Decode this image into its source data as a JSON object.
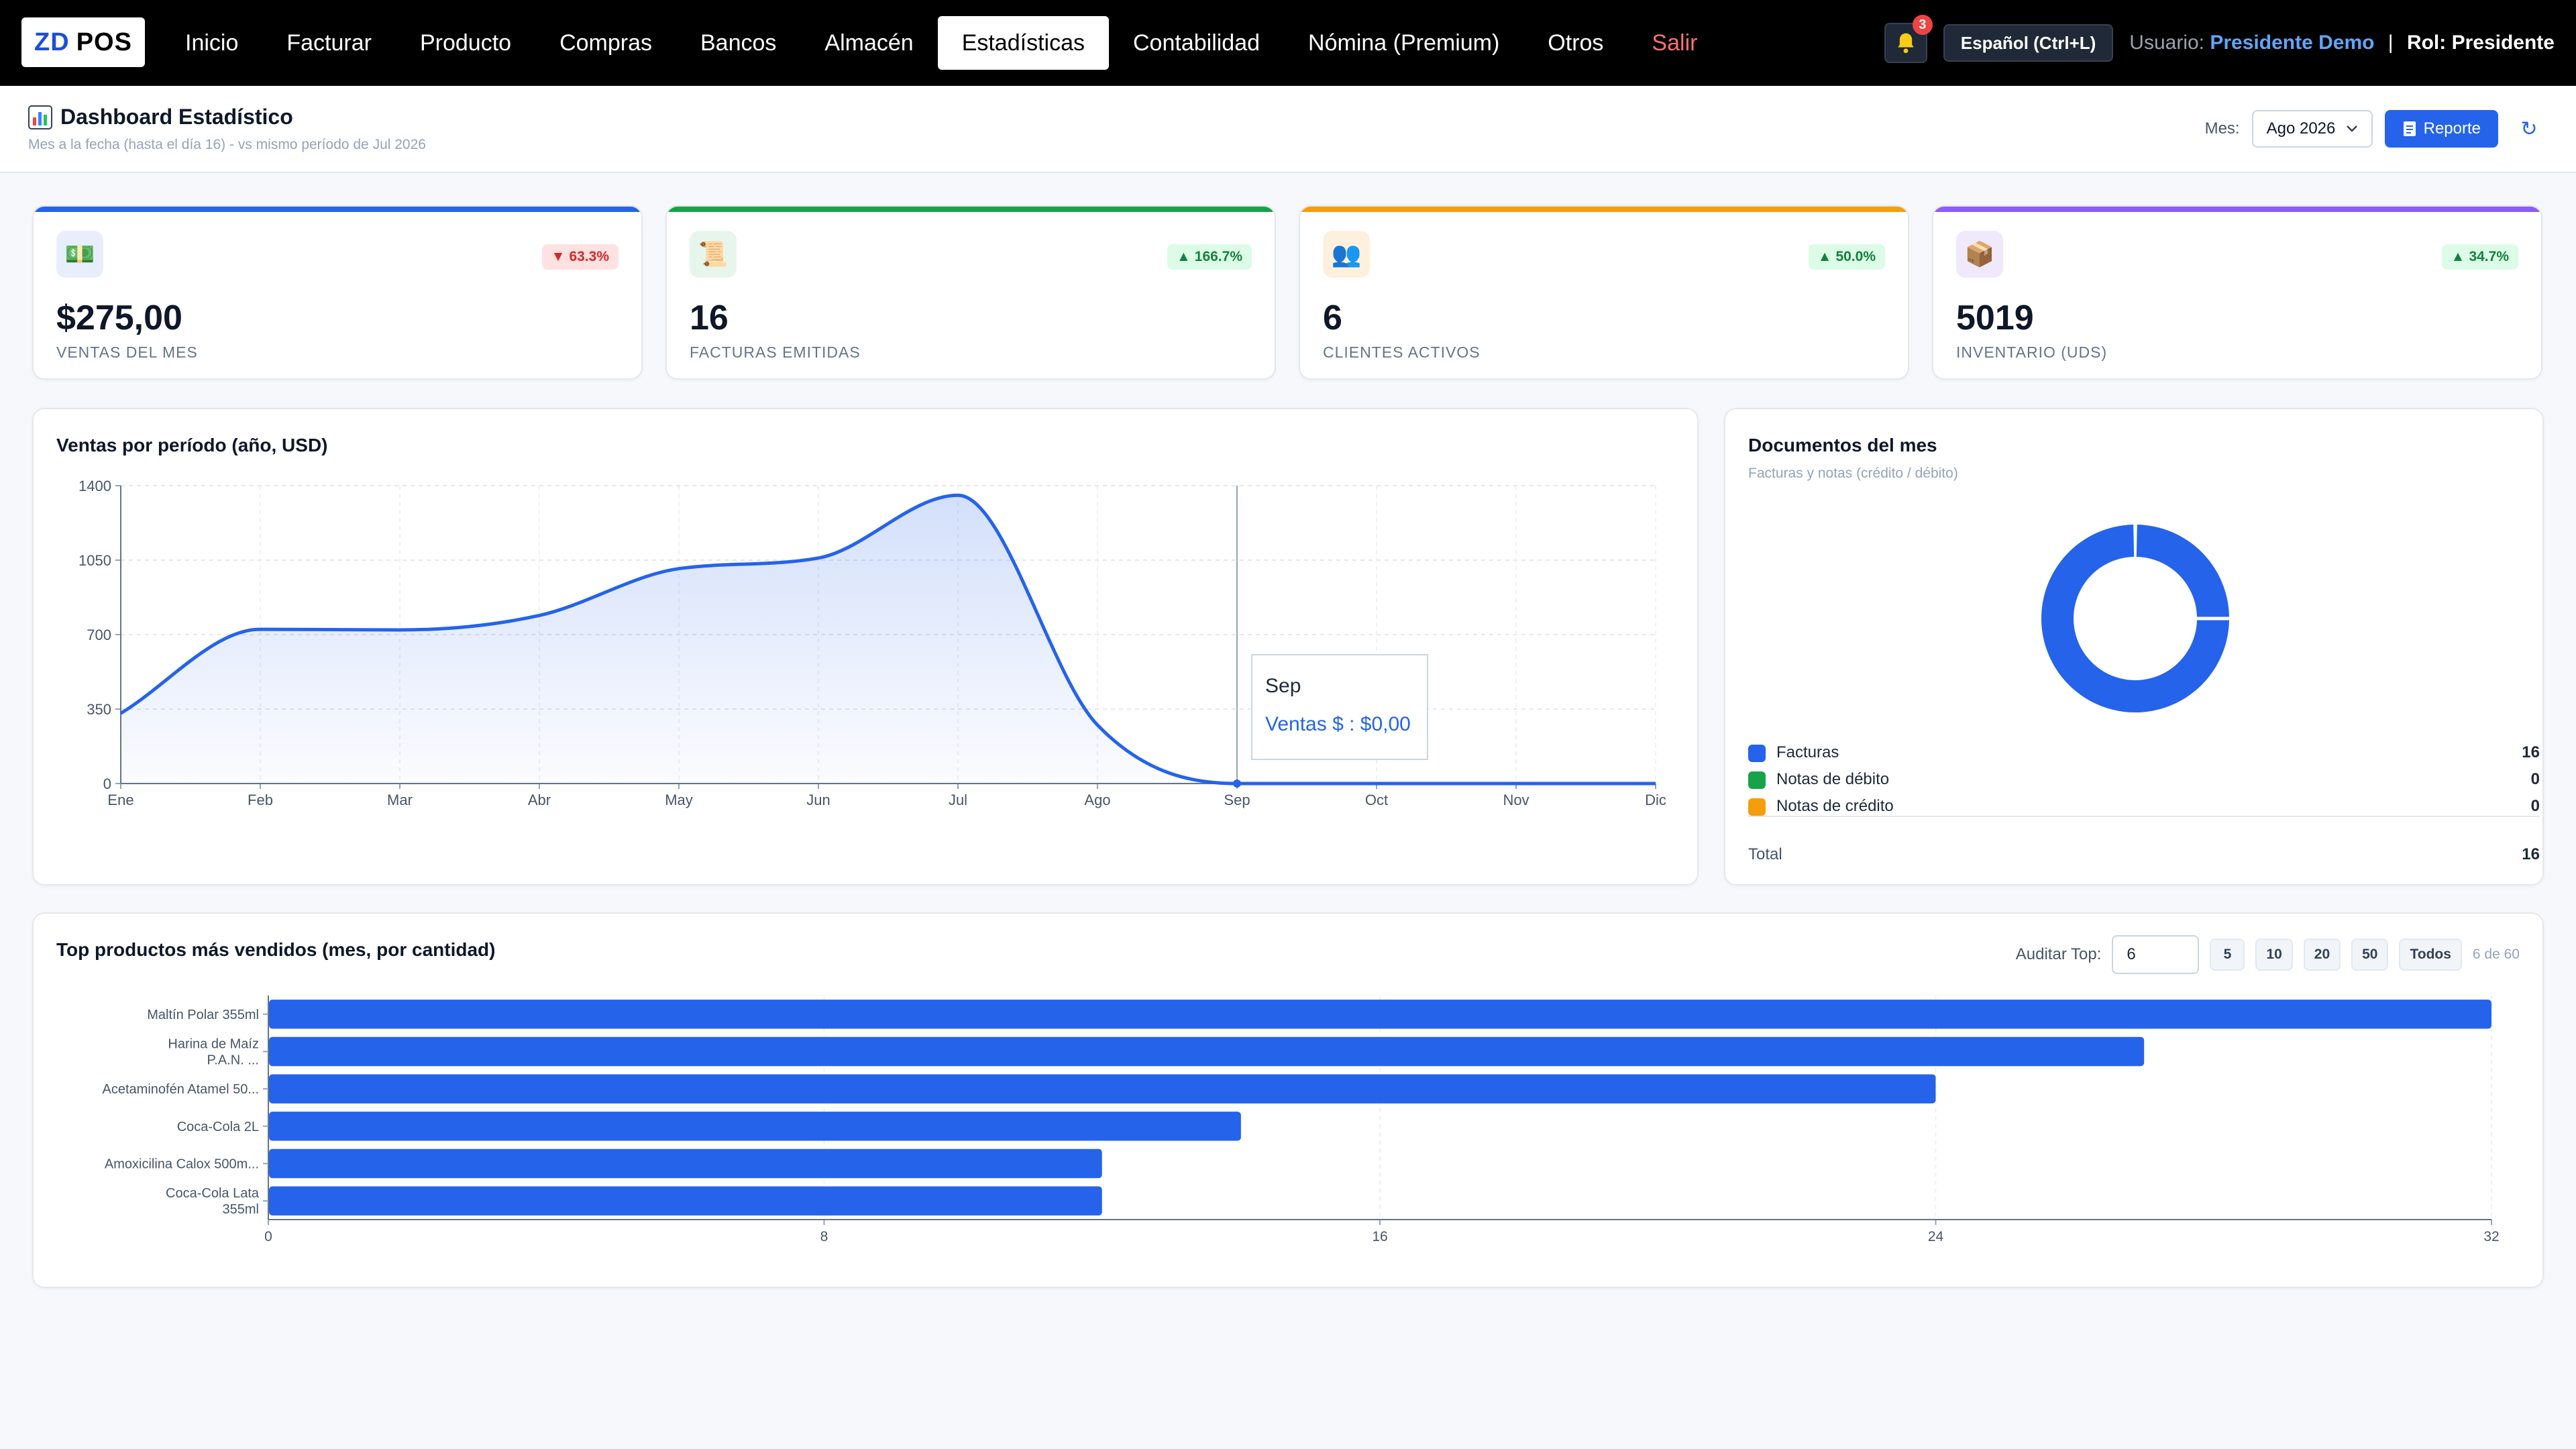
{
  "app": {
    "logo_zd": "ZD",
    "logo_pos": "POS"
  },
  "nav": {
    "items": [
      {
        "label": "Inicio"
      },
      {
        "label": "Facturar"
      },
      {
        "label": "Producto"
      },
      {
        "label": "Compras"
      },
      {
        "label": "Bancos"
      },
      {
        "label": "Almacén"
      },
      {
        "label": "Estadísticas",
        "active": true
      },
      {
        "label": "Contabilidad"
      },
      {
        "label": "Nómina (Premium)"
      },
      {
        "label": "Otros"
      },
      {
        "label": "Salir",
        "danger": true
      }
    ],
    "notifications_count": "3",
    "language_button": "Español (Ctrl+L)",
    "user_label": "Usuario:",
    "user_name": "Presidente Demo",
    "separator": "|",
    "role": "Rol: Presidente"
  },
  "header": {
    "title": "Dashboard Estadístico",
    "subtitle": "Mes a la fecha (hasta el día 16) - vs mismo período de Jul 2026",
    "month_label": "Mes:",
    "month_value": "Ago 2026",
    "report_button": "Reporte",
    "refresh_icon": "↻"
  },
  "kpis": [
    {
      "icon": "money-icon",
      "glyph": "💵",
      "value": "$275,00",
      "label": "Ventas del mes",
      "change": "63.3%",
      "direction": "down",
      "accent": "#2563eb",
      "icon_bg": "#e8eefb"
    },
    {
      "icon": "scroll-icon",
      "glyph": "📜",
      "value": "16",
      "label": "Facturas emitidas",
      "change": "166.7%",
      "direction": "up",
      "accent": "#16a34a",
      "icon_bg": "#e6f6ec"
    },
    {
      "icon": "users-icon",
      "glyph": "👥",
      "value": "6",
      "label": "Clientes activos",
      "change": "50.0%",
      "direction": "up",
      "accent": "#f59e0b",
      "icon_bg": "#fdf1de"
    },
    {
      "icon": "box-icon",
      "glyph": "📦",
      "value": "5019",
      "label": "Inventario (uds)",
      "change": "34.7%",
      "direction": "up",
      "accent": "#8b5cf6",
      "icon_bg": "#efe9fb"
    }
  ],
  "sales_chart": {
    "title": "Ventas por período (año, USD)",
    "tooltip": {
      "month": "Sep",
      "text": "Ventas $ : $0,00"
    },
    "chart_data": {
      "type": "area",
      "categories": [
        "Ene",
        "Feb",
        "Mar",
        "Abr",
        "May",
        "Jun",
        "Jul",
        "Ago",
        "Sep",
        "Oct",
        "Nov",
        "Dic"
      ],
      "series": [
        {
          "name": "Ventas $",
          "values": [
            330,
            725,
            722,
            790,
            1010,
            1060,
            1355,
            275,
            0,
            0,
            0,
            0
          ]
        }
      ],
      "yticks": [
        0,
        350,
        700,
        1050,
        1400
      ],
      "ylim": [
        0,
        1400
      ],
      "grid": true,
      "color": "#2563eb"
    }
  },
  "documents": {
    "title": "Documentos del mes",
    "subtitle": "Facturas y notas (crédito / débito)",
    "items": [
      {
        "label": "Facturas",
        "value": "16",
        "color": "#2563eb"
      },
      {
        "label": "Notas de débito",
        "value": "0",
        "color": "#16a34a"
      },
      {
        "label": "Notas de crédito",
        "value": "0",
        "color": "#f59e0b"
      }
    ],
    "total_label": "Total",
    "total_value": "16",
    "chart_data": {
      "type": "pie",
      "categories": [
        "Facturas",
        "Notas de débito",
        "Notas de crédito"
      ],
      "values": [
        16,
        0,
        0
      ]
    }
  },
  "top_products": {
    "title": "Top productos más vendidos (mes, por cantidad)",
    "audit_label": "Auditar Top:",
    "audit_value": "6",
    "buttons": [
      "5",
      "10",
      "20",
      "50",
      "Todos"
    ],
    "count_text": "6 de 60",
    "chart_data": {
      "type": "bar",
      "orientation": "horizontal",
      "categories": [
        [
          "Maltín Polar 355ml"
        ],
        [
          "Harina de Maíz",
          "P.A.N. ..."
        ],
        [
          "Acetaminofén Atamel 50..."
        ],
        [
          "Coca-Cola 2L"
        ],
        [
          "Amoxicilina Calox 500m..."
        ],
        [
          "Coca-Cola Lata",
          "355ml"
        ]
      ],
      "values": [
        32,
        27,
        24,
        14,
        12,
        12
      ],
      "xticks": [
        0,
        8,
        16,
        24,
        32
      ],
      "xlim": [
        0,
        32
      ],
      "color": "#2563eb"
    }
  }
}
